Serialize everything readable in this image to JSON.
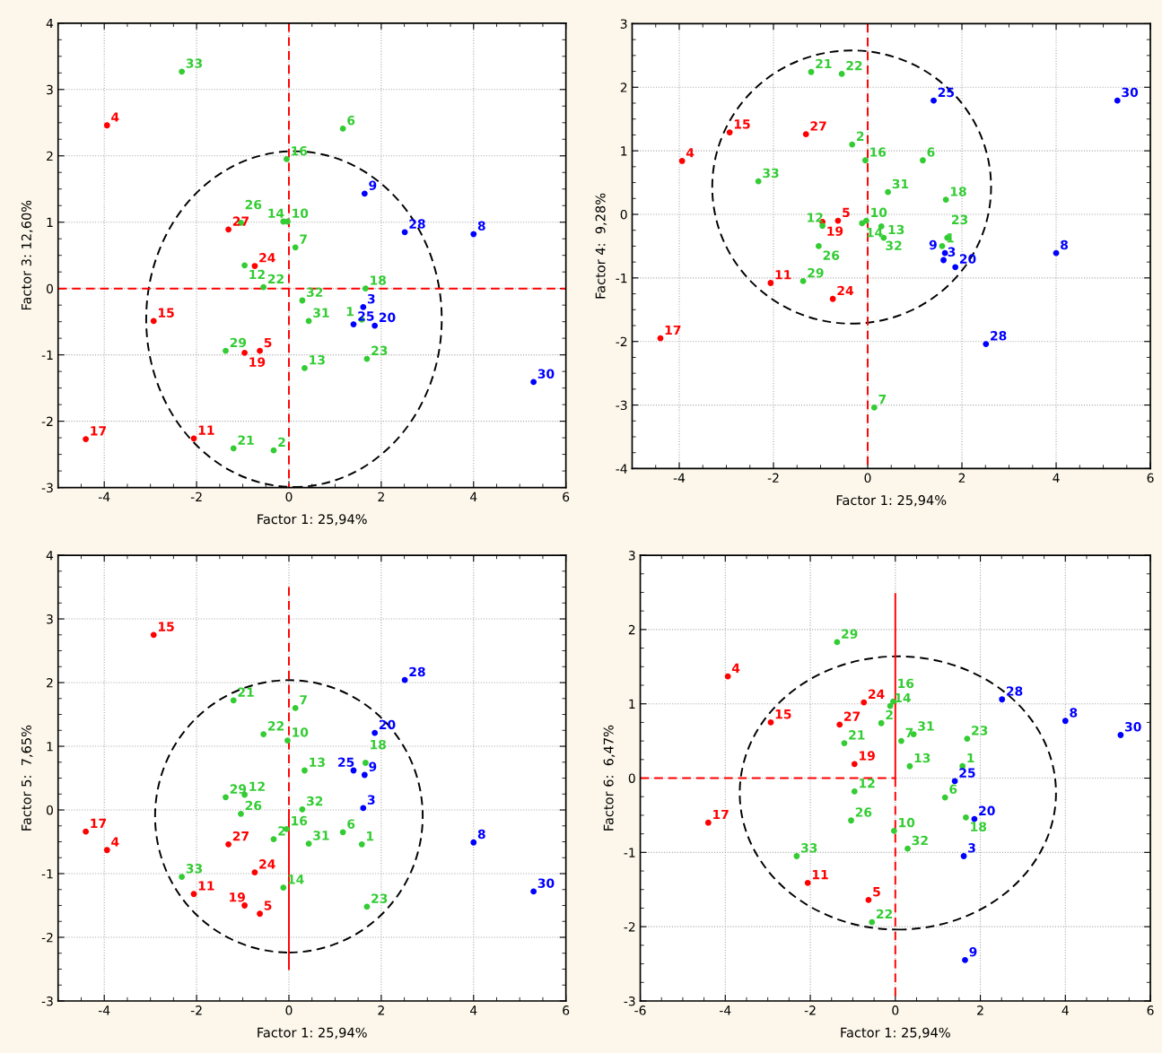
{
  "chart_data": [
    {
      "type": "scatter",
      "xlabel": "Factor 1: 25,94%",
      "ylabel": "Factor 3: 12,60%",
      "xlim": [
        -5,
        6
      ],
      "xticks": [
        -4,
        -2,
        0,
        2,
        4,
        6
      ],
      "ylim": [
        -3,
        4
      ],
      "yticks": [
        -3,
        -2,
        -1,
        0,
        1,
        2,
        3,
        4
      ],
      "grid": true,
      "marker": "circle",
      "series": [
        {
          "type": "line",
          "marker": "none",
          "color": "#ff0000",
          "line_style": "dashed",
          "x": [
            -5,
            6
          ],
          "values": [
            0,
            0
          ]
        },
        {
          "type": "line",
          "marker": "none",
          "color": "#ff0000",
          "line_style": "dashed",
          "x": [
            0,
            0
          ],
          "values": [
            4,
            -3
          ]
        },
        {
          "color": "#ff0000",
          "x": [
            -3.94,
            -0.63,
            -2.06,
            -2.93,
            -4.4,
            -0.96,
            -0.74,
            -1.31
          ],
          "values": [
            2.46,
            -0.94,
            -2.26,
            -0.49,
            -2.27,
            -0.97,
            0.34,
            0.89
          ]
        },
        {
          "color": "#0000ff",
          "x": [
            1.61,
            4.0,
            1.64,
            1.86,
            1.4,
            2.51,
            5.3
          ],
          "values": [
            -0.28,
            0.82,
            1.43,
            -0.56,
            -0.54,
            0.85,
            -1.41
          ]
        },
        {
          "color": "#33cc33",
          "x": [
            1.58,
            -0.33,
            1.17,
            0.14,
            -0.03,
            -0.96,
            0.34,
            -0.12,
            -0.05,
            1.66,
            -1.2,
            -0.55,
            1.69,
            -1.04,
            -1.37,
            0.43,
            0.29,
            -2.32
          ],
          "values": [
            -0.47,
            -2.44,
            2.41,
            0.62,
            1.01,
            0.35,
            -1.2,
            1.01,
            1.95,
            0.0,
            -2.41,
            0.02,
            -1.06,
            0.99,
            -0.94,
            -0.49,
            -0.18,
            3.27
          ]
        }
      ],
      "annotations": [
        {
          "text": "4",
          "x": -3.94,
          "y": 2.46
        },
        {
          "text": "5",
          "x": -0.63,
          "y": -0.94
        },
        {
          "text": "11",
          "x": -2.06,
          "y": -2.26
        },
        {
          "text": "15",
          "x": -2.93,
          "y": -0.49
        },
        {
          "text": "17",
          "x": -4.4,
          "y": -2.27
        },
        {
          "text": "19",
          "x": -0.96,
          "y": -0.97
        },
        {
          "text": "24",
          "x": -0.74,
          "y": 0.34
        },
        {
          "text": "27",
          "x": -1.31,
          "y": 0.89
        },
        {
          "text": "3",
          "x": 1.61,
          "y": -0.28
        },
        {
          "text": "8",
          "x": 4.0,
          "y": 0.82
        },
        {
          "text": "9",
          "x": 1.64,
          "y": 1.43
        },
        {
          "text": "20",
          "x": 1.86,
          "y": -0.56
        },
        {
          "text": "25",
          "x": 1.4,
          "y": -0.54
        },
        {
          "text": "28",
          "x": 2.51,
          "y": 0.85
        },
        {
          "text": "30",
          "x": 5.3,
          "y": -1.41
        },
        {
          "text": "1",
          "x": 1.58,
          "y": -0.47
        },
        {
          "text": "2",
          "x": -0.33,
          "y": -2.44
        },
        {
          "text": "6",
          "x": 1.17,
          "y": 2.41
        },
        {
          "text": "7",
          "x": 0.14,
          "y": 0.62
        },
        {
          "text": "10",
          "x": -0.03,
          "y": 1.01
        },
        {
          "text": "12",
          "x": -0.96,
          "y": 0.35
        },
        {
          "text": "13",
          "x": 0.34,
          "y": -1.2
        },
        {
          "text": "14",
          "x": -0.12,
          "y": 1.01
        },
        {
          "text": "16",
          "x": -0.05,
          "y": 1.95
        },
        {
          "text": "18",
          "x": 1.66,
          "y": 0.0
        },
        {
          "text": "21",
          "x": -1.2,
          "y": -2.41
        },
        {
          "text": "22",
          "x": -0.55,
          "y": 0.02
        },
        {
          "text": "23",
          "x": 1.69,
          "y": -1.06
        },
        {
          "text": "26",
          "x": -1.04,
          "y": 0.99
        },
        {
          "text": "29",
          "x": -1.37,
          "y": -0.94
        },
        {
          "text": "31",
          "x": 0.43,
          "y": -0.49
        },
        {
          "text": "32",
          "x": 0.29,
          "y": -0.18
        },
        {
          "text": "33",
          "x": -2.32,
          "y": 3.27
        }
      ]
    },
    {
      "type": "scatter",
      "xlabel": "Factor 1: 25,94%",
      "ylabel": "Factor 4:  9,28%",
      "xlim": [
        -5,
        6
      ],
      "xticks": [
        -4,
        -2,
        0,
        2,
        4,
        6
      ],
      "ylim": [
        -4,
        3
      ],
      "yticks": [
        -4,
        -3,
        -2,
        -1,
        0,
        1,
        2,
        3
      ],
      "grid": true,
      "marker": "circle",
      "series": [
        {
          "type": "line",
          "marker": "none",
          "color": "#ff0000",
          "line_style": "dashed",
          "x": [
            0,
            0
          ],
          "values": [
            3,
            -4
          ]
        },
        {
          "color": "#ff0000",
          "x": [
            -3.94,
            -0.63,
            -2.06,
            -2.93,
            -4.4,
            -0.96,
            -0.74,
            -1.31
          ],
          "values": [
            0.84,
            -0.1,
            -1.08,
            1.29,
            -1.95,
            -0.12,
            -1.33,
            1.26
          ]
        },
        {
          "color": "#0000ff",
          "x": [
            1.61,
            4.0,
            1.64,
            1.86,
            1.4,
            2.51,
            5.3
          ],
          "values": [
            -0.72,
            -0.61,
            -0.61,
            -0.83,
            1.79,
            -2.04,
            1.79
          ]
        },
        {
          "color": "#33cc33",
          "x": [
            1.58,
            -0.33,
            1.17,
            0.14,
            -0.03,
            -0.96,
            0.34,
            -0.12,
            -0.05,
            1.66,
            -1.2,
            -0.55,
            1.69,
            -1.04,
            -1.37,
            0.43,
            0.29,
            -2.32
          ],
          "values": [
            -0.5,
            1.1,
            0.85,
            -3.04,
            -0.1,
            -0.18,
            -0.37,
            -0.14,
            0.85,
            0.23,
            2.24,
            2.21,
            -0.37,
            -0.5,
            -1.05,
            0.35,
            -0.19,
            0.52
          ]
        }
      ],
      "annotations": [
        {
          "text": "4",
          "x": -3.94,
          "y": 0.84
        },
        {
          "text": "5",
          "x": -0.63,
          "y": -0.1
        },
        {
          "text": "11",
          "x": -2.06,
          "y": -1.08
        },
        {
          "text": "15",
          "x": -2.93,
          "y": 1.29
        },
        {
          "text": "17",
          "x": -4.4,
          "y": -1.95
        },
        {
          "text": "19",
          "x": -0.96,
          "y": -0.12
        },
        {
          "text": "24",
          "x": -0.74,
          "y": -1.33
        },
        {
          "text": "27",
          "x": -1.31,
          "y": 1.26
        },
        {
          "text": "3",
          "x": 1.61,
          "y": -0.72
        },
        {
          "text": "8",
          "x": 4.0,
          "y": -0.61
        },
        {
          "text": "9",
          "x": 1.64,
          "y": -0.61
        },
        {
          "text": "20",
          "x": 1.86,
          "y": -0.83
        },
        {
          "text": "25",
          "x": 1.4,
          "y": 1.79
        },
        {
          "text": "28",
          "x": 2.51,
          "y": -2.04
        },
        {
          "text": "30",
          "x": 5.3,
          "y": 1.79
        },
        {
          "text": "1",
          "x": 1.58,
          "y": -0.5
        },
        {
          "text": "2",
          "x": -0.33,
          "y": 1.1
        },
        {
          "text": "6",
          "x": 1.17,
          "y": 0.85
        },
        {
          "text": "7",
          "x": 0.14,
          "y": -3.04
        },
        {
          "text": "10",
          "x": -0.03,
          "y": -0.1
        },
        {
          "text": "12",
          "x": -0.96,
          "y": -0.18
        },
        {
          "text": "13",
          "x": 0.34,
          "y": -0.37
        },
        {
          "text": "14",
          "x": -0.12,
          "y": -0.14
        },
        {
          "text": "16",
          "x": -0.05,
          "y": 0.85
        },
        {
          "text": "18",
          "x": 1.66,
          "y": 0.23
        },
        {
          "text": "21",
          "x": -1.2,
          "y": 2.24
        },
        {
          "text": "22",
          "x": -0.55,
          "y": 2.21
        },
        {
          "text": "23",
          "x": 1.69,
          "y": -0.37
        },
        {
          "text": "26",
          "x": -1.04,
          "y": -0.5
        },
        {
          "text": "29",
          "x": -1.37,
          "y": -1.05
        },
        {
          "text": "31",
          "x": 0.43,
          "y": 0.35
        },
        {
          "text": "32",
          "x": 0.29,
          "y": -0.19
        },
        {
          "text": "33",
          "x": -2.32,
          "y": 0.52
        }
      ]
    },
    {
      "type": "scatter",
      "xlabel": "Factor 1: 25,94%",
      "ylabel": "Factor 5:  7,65%",
      "xlim": [
        -5,
        6
      ],
      "xticks": [
        -4,
        -2,
        0,
        2,
        4,
        6
      ],
      "ylim": [
        -3,
        4
      ],
      "yticks": [
        -3,
        -2,
        -1,
        0,
        1,
        2,
        3,
        4
      ],
      "grid": true,
      "marker": "circle",
      "series": [
        {
          "type": "line",
          "marker": "none",
          "color": "#ff0000",
          "line_style": "dashed",
          "x": [
            0,
            0
          ],
          "values": [
            3.5,
            0
          ]
        },
        {
          "type": "line",
          "marker": "none",
          "color": "#ff0000",
          "line_style": "solid",
          "x": [
            0,
            0
          ],
          "values": [
            0,
            -2.5
          ]
        },
        {
          "color": "#ff0000",
          "x": [
            -3.94,
            -0.63,
            -2.06,
            -2.93,
            -4.4,
            -0.96,
            -0.74,
            -1.31
          ],
          "values": [
            -0.63,
            -1.63,
            -1.32,
            2.75,
            -0.34,
            -1.5,
            -0.98,
            -0.54
          ]
        },
        {
          "color": "#0000ff",
          "x": [
            1.61,
            4.0,
            1.64,
            1.86,
            1.4,
            2.51,
            5.3
          ],
          "values": [
            0.03,
            -0.51,
            0.55,
            1.21,
            0.62,
            2.04,
            -1.28
          ]
        },
        {
          "color": "#33cc33",
          "x": [
            1.58,
            -0.33,
            1.17,
            0.14,
            -0.03,
            -0.96,
            0.34,
            -0.12,
            -0.05,
            1.66,
            -1.2,
            -0.55,
            1.69,
            -1.04,
            -1.37,
            0.43,
            0.29,
            -2.32
          ],
          "values": [
            -0.54,
            -0.46,
            -0.35,
            1.6,
            1.09,
            0.24,
            0.62,
            -1.22,
            -0.3,
            0.74,
            1.72,
            1.19,
            -1.52,
            -0.06,
            0.2,
            -0.53,
            0.01,
            -1.05
          ]
        }
      ],
      "annotations": [
        {
          "text": "4",
          "x": -3.94,
          "y": -0.63
        },
        {
          "text": "5",
          "x": -0.63,
          "y": -1.63
        },
        {
          "text": "11",
          "x": -2.06,
          "y": -1.32
        },
        {
          "text": "15",
          "x": -2.93,
          "y": 2.75
        },
        {
          "text": "17",
          "x": -4.4,
          "y": -0.34
        },
        {
          "text": "19",
          "x": -0.96,
          "y": -1.5
        },
        {
          "text": "24",
          "x": -0.74,
          "y": -0.98
        },
        {
          "text": "27",
          "x": -1.31,
          "y": -0.54
        },
        {
          "text": "3",
          "x": 1.61,
          "y": 0.03
        },
        {
          "text": "8",
          "x": 4.0,
          "y": -0.51
        },
        {
          "text": "9",
          "x": 1.64,
          "y": 0.55
        },
        {
          "text": "20",
          "x": 1.86,
          "y": 1.21
        },
        {
          "text": "25",
          "x": 1.4,
          "y": 0.62
        },
        {
          "text": "28",
          "x": 2.51,
          "y": 2.04
        },
        {
          "text": "30",
          "x": 5.3,
          "y": -1.28
        },
        {
          "text": "1",
          "x": 1.58,
          "y": -0.54
        },
        {
          "text": "2",
          "x": -0.33,
          "y": -0.46
        },
        {
          "text": "6",
          "x": 1.17,
          "y": -0.35
        },
        {
          "text": "7",
          "x": 0.14,
          "y": 1.6
        },
        {
          "text": "10",
          "x": -0.03,
          "y": 1.09
        },
        {
          "text": "12",
          "x": -0.96,
          "y": 0.24
        },
        {
          "text": "13",
          "x": 0.34,
          "y": 0.62
        },
        {
          "text": "14",
          "x": -0.12,
          "y": -1.22
        },
        {
          "text": "16",
          "x": -0.05,
          "y": -0.3
        },
        {
          "text": "18",
          "x": 1.66,
          "y": 0.74
        },
        {
          "text": "21",
          "x": -1.2,
          "y": 1.72
        },
        {
          "text": "22",
          "x": -0.55,
          "y": 1.19
        },
        {
          "text": "23",
          "x": 1.69,
          "y": -1.52
        },
        {
          "text": "26",
          "x": -1.04,
          "y": -0.06
        },
        {
          "text": "29",
          "x": -1.37,
          "y": 0.2
        },
        {
          "text": "31",
          "x": 0.43,
          "y": -0.53
        },
        {
          "text": "32",
          "x": 0.29,
          "y": 0.01
        },
        {
          "text": "33",
          "x": -2.32,
          "y": -1.05
        }
      ]
    },
    {
      "type": "scatter",
      "xlabel": "Factor 1: 25,94%",
      "ylabel": "Factor 6:  6,47%",
      "xlim": [
        -6,
        6
      ],
      "xticks": [
        -6,
        -4,
        -2,
        0,
        2,
        4,
        6
      ],
      "ylim": [
        -3,
        3
      ],
      "yticks": [
        -3,
        -2,
        -1,
        0,
        1,
        2,
        3
      ],
      "grid": true,
      "marker": "circle",
      "series": [
        {
          "type": "line",
          "marker": "none",
          "color": "#ff0000",
          "line_style": "solid",
          "x": [
            0,
            0
          ],
          "values": [
            2.48,
            0
          ]
        },
        {
          "type": "line",
          "marker": "none",
          "color": "#ff0000",
          "line_style": "dashed",
          "x": [
            0,
            0
          ],
          "values": [
            0,
            -3
          ]
        },
        {
          "type": "line",
          "marker": "none",
          "color": "#ff0000",
          "line_style": "dashed",
          "x": [
            -6,
            0
          ],
          "values": [
            0,
            0
          ]
        },
        {
          "color": "#ff0000",
          "x": [
            -3.94,
            -0.63,
            -2.06,
            -2.93,
            -4.4,
            -0.96,
            -0.74,
            -1.31
          ],
          "values": [
            1.37,
            -1.64,
            -1.41,
            0.75,
            -0.6,
            0.19,
            1.02,
            0.72
          ]
        },
        {
          "color": "#0000ff",
          "x": [
            1.61,
            4.0,
            1.64,
            1.86,
            1.4,
            2.51,
            5.3
          ],
          "values": [
            -1.05,
            0.77,
            -2.45,
            -0.55,
            -0.04,
            1.06,
            0.58
          ]
        },
        {
          "color": "#33cc33",
          "x": [
            1.58,
            -0.33,
            1.17,
            0.14,
            -0.03,
            -0.96,
            0.34,
            -0.12,
            -0.05,
            1.66,
            -1.2,
            -0.55,
            1.69,
            -1.04,
            -1.37,
            0.43,
            0.29,
            -2.32
          ],
          "values": [
            0.16,
            0.74,
            -0.26,
            0.5,
            -0.71,
            -0.18,
            0.16,
            0.97,
            1.03,
            -0.53,
            0.47,
            -1.94,
            0.53,
            -0.57,
            1.83,
            0.59,
            -0.95,
            -1.05
          ]
        }
      ],
      "annotations": [
        {
          "text": "4",
          "x": -3.94,
          "y": 1.37
        },
        {
          "text": "5",
          "x": -0.63,
          "y": -1.64
        },
        {
          "text": "11",
          "x": -2.06,
          "y": -1.41
        },
        {
          "text": "15",
          "x": -2.93,
          "y": 0.75
        },
        {
          "text": "17",
          "x": -4.4,
          "y": -0.6
        },
        {
          "text": "19",
          "x": -0.96,
          "y": 0.19
        },
        {
          "text": "24",
          "x": -0.74,
          "y": 1.02
        },
        {
          "text": "27",
          "x": -1.31,
          "y": 0.72
        },
        {
          "text": "3",
          "x": 1.61,
          "y": -1.05
        },
        {
          "text": "8",
          "x": 4.0,
          "y": 0.77
        },
        {
          "text": "9",
          "x": 1.64,
          "y": -2.45
        },
        {
          "text": "20",
          "x": 1.86,
          "y": -0.55
        },
        {
          "text": "25",
          "x": 1.4,
          "y": -0.04
        },
        {
          "text": "28",
          "x": 2.51,
          "y": 1.06
        },
        {
          "text": "30",
          "x": 5.3,
          "y": 0.58
        },
        {
          "text": "1",
          "x": 1.58,
          "y": 0.16
        },
        {
          "text": "2",
          "x": -0.33,
          "y": 0.74
        },
        {
          "text": "6",
          "x": 1.17,
          "y": -0.26
        },
        {
          "text": "7",
          "x": 0.14,
          "y": 0.5
        },
        {
          "text": "10",
          "x": -0.03,
          "y": -0.71
        },
        {
          "text": "12",
          "x": -0.96,
          "y": -0.18
        },
        {
          "text": "13",
          "x": 0.34,
          "y": 0.16
        },
        {
          "text": "14",
          "x": -0.12,
          "y": 0.97
        },
        {
          "text": "16",
          "x": -0.05,
          "y": 1.03
        },
        {
          "text": "18",
          "x": 1.66,
          "y": -0.53
        },
        {
          "text": "21",
          "x": -1.2,
          "y": 0.47
        },
        {
          "text": "22",
          "x": -0.55,
          "y": -1.94
        },
        {
          "text": "23",
          "x": 1.69,
          "y": 0.53
        },
        {
          "text": "26",
          "x": -1.04,
          "y": -0.57
        },
        {
          "text": "29",
          "x": -1.37,
          "y": 1.83
        },
        {
          "text": "31",
          "x": 0.43,
          "y": 0.59
        },
        {
          "text": "32",
          "x": 0.29,
          "y": -0.95
        },
        {
          "text": "33",
          "x": -2.32,
          "y": -1.05
        }
      ]
    }
  ]
}
